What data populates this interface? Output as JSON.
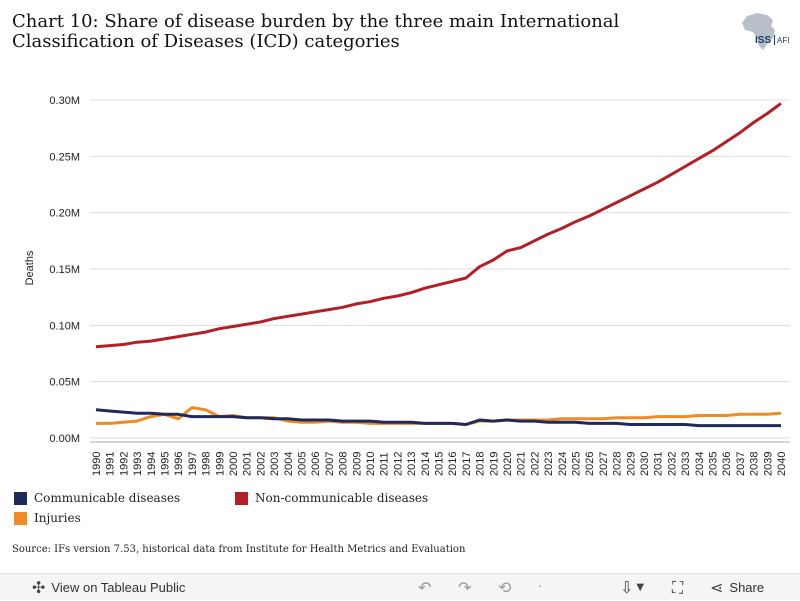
{
  "title": "Chart 10: Share of disease burden by the three main International Classification of Diseases (ICD) categories",
  "logo": {
    "text": "ISS|AFI"
  },
  "source": "Source: IFs version 7.53, historical data from Institute for Health Metrics and Evaluation",
  "toolbar": {
    "view_label": "View on Tableau Public",
    "share_label": "Share",
    "icons": [
      "undo-icon",
      "redo-icon",
      "revert-icon",
      "download-icon",
      "fullscreen-icon",
      "share-icon"
    ]
  },
  "colors": {
    "communicable": "#1f2a5a",
    "non_communicable": "#b31f24",
    "injuries": "#f08a24",
    "grid": "#dddddd"
  },
  "chart_data": {
    "type": "line",
    "ylabel": "Deaths",
    "xlabel": "",
    "ylim": [
      0,
      300000
    ],
    "yticks": [
      {
        "value": 0,
        "label": "0.00M"
      },
      {
        "value": 50000,
        "label": "0.05M"
      },
      {
        "value": 100000,
        "label": "0.10M"
      },
      {
        "value": 150000,
        "label": "0.15M"
      },
      {
        "value": 200000,
        "label": "0.20M"
      },
      {
        "value": 250000,
        "label": "0.25M"
      },
      {
        "value": 300000,
        "label": "0.30M"
      }
    ],
    "x": [
      "1990",
      "1991",
      "1992",
      "1993",
      "1994",
      "1995",
      "1996",
      "1997",
      "1998",
      "1999",
      "2000",
      "2001",
      "2002",
      "2003",
      "2004",
      "2005",
      "2006",
      "2007",
      "2008",
      "2009",
      "2010",
      "2011",
      "2012",
      "2013",
      "2014",
      "2015",
      "2016",
      "2017",
      "2018",
      "2019",
      "2020",
      "2021",
      "2022",
      "2023",
      "2024",
      "2025",
      "2026",
      "2027",
      "2028",
      "2029",
      "2030",
      "2031",
      "2032",
      "2033",
      "2034",
      "2035",
      "2036",
      "2037",
      "2038",
      "2039",
      "2040"
    ],
    "grid": "horizontal",
    "legend_position": "bottom",
    "series": [
      {
        "name": "Communicable diseases",
        "color": "#1f2a5a",
        "values": [
          25000,
          24000,
          23000,
          22000,
          22000,
          21000,
          21000,
          19000,
          19000,
          19000,
          19000,
          18000,
          18000,
          17000,
          17000,
          16000,
          16000,
          16000,
          15000,
          15000,
          15000,
          14000,
          14000,
          14000,
          13000,
          13000,
          13000,
          12000,
          16000,
          15000,
          16000,
          15000,
          15000,
          14000,
          14000,
          14000,
          13000,
          13000,
          13000,
          12000,
          12000,
          12000,
          12000,
          12000,
          11000,
          11000,
          11000,
          11000,
          11000,
          11000,
          11000
        ]
      },
      {
        "name": "Non-communicable diseases",
        "color": "#b31f24",
        "values": [
          81000,
          82000,
          83000,
          85000,
          86000,
          88000,
          90000,
          92000,
          94000,
          97000,
          99000,
          101000,
          103000,
          106000,
          108000,
          110000,
          112000,
          114000,
          116000,
          119000,
          121000,
          124000,
          126000,
          129000,
          133000,
          136000,
          139000,
          142000,
          152000,
          158000,
          166000,
          169000,
          175000,
          181000,
          186000,
          192000,
          197000,
          203000,
          209000,
          215000,
          221000,
          227000,
          234000,
          241000,
          248000,
          255000,
          263000,
          271000,
          280000,
          288000,
          297000
        ]
      },
      {
        "name": "Injuries",
        "color": "#f08a24",
        "values": [
          13000,
          13000,
          14000,
          15000,
          19000,
          21000,
          17000,
          27000,
          25000,
          19000,
          20000,
          18000,
          18000,
          18000,
          15000,
          14000,
          14000,
          15000,
          14000,
          14000,
          13000,
          13000,
          13000,
          13000,
          13000,
          13000,
          13000,
          12000,
          15000,
          15000,
          16000,
          16000,
          16000,
          16000,
          17000,
          17000,
          17000,
          17000,
          18000,
          18000,
          18000,
          19000,
          19000,
          19000,
          20000,
          20000,
          20000,
          21000,
          21000,
          21000,
          22000
        ]
      }
    ]
  }
}
